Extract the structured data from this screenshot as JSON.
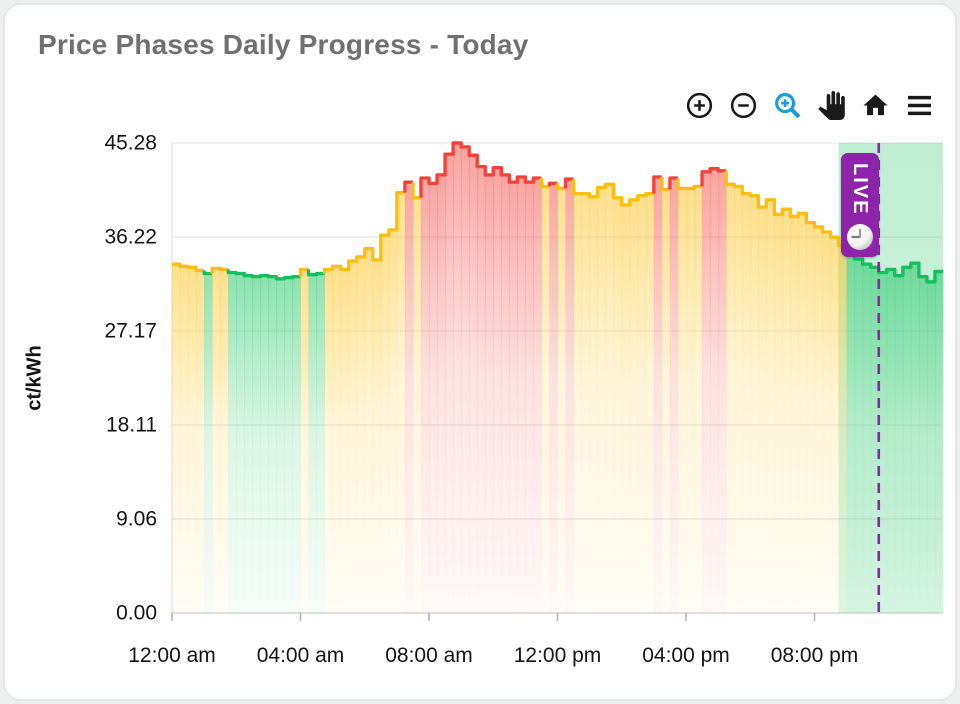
{
  "header": {
    "title": "Price Phases Daily Progress - Today"
  },
  "toolbar": {
    "icon_color": "#1a1a1a",
    "active_color": "#149fda",
    "items": [
      {
        "name": "zoom-in",
        "icon": "circle-plus-icon",
        "active": false
      },
      {
        "name": "zoom-out",
        "icon": "circle-minus-icon",
        "active": false
      },
      {
        "name": "zoom-select",
        "icon": "magnifier-plus-icon",
        "active": true
      },
      {
        "name": "pan",
        "icon": "hand-icon",
        "active": false
      },
      {
        "name": "reset-view",
        "icon": "home-icon",
        "active": false
      },
      {
        "name": "menu",
        "icon": "hamburger-icon",
        "active": false
      }
    ]
  },
  "live_badge": {
    "label": "LIVE",
    "background": "#8e24aa",
    "icon": "clock-icon"
  },
  "chart_data": {
    "type": "area",
    "subtype": "step-phase-area",
    "title": "Price Phases Daily Progress - Today",
    "ylabel": "ct/kWh",
    "xlabel": "",
    "grid": true,
    "legend_position": "none",
    "step_minutes": 15,
    "ylim": [
      0,
      45.28
    ],
    "yticks": [
      {
        "value": 0,
        "label": "0.00"
      },
      {
        "value": 9.06,
        "label": "9.06"
      },
      {
        "value": 18.11,
        "label": "18.11"
      },
      {
        "value": 27.17,
        "label": "27.17"
      },
      {
        "value": 36.22,
        "label": "36.22"
      },
      {
        "value": 45.28,
        "label": "45.28"
      }
    ],
    "xticks": [
      {
        "hour": 0,
        "label": "12:00 am"
      },
      {
        "hour": 4,
        "label": "04:00 am"
      },
      {
        "hour": 8,
        "label": "08:00 am"
      },
      {
        "hour": 12,
        "label": "12:00 pm"
      },
      {
        "hour": 16,
        "label": "04:00 pm"
      },
      {
        "hour": 20,
        "label": "08:00 pm"
      }
    ],
    "phase_colors": {
      "G": "#12c15c",
      "Y": "#fcbe12",
      "R": "#f2433b"
    },
    "live_region": {
      "start_hour": 20.75,
      "end_hour": 24,
      "color": "#12c15c"
    },
    "now_line": {
      "hour": 22,
      "color": "#8e24aa",
      "style": "dashed"
    },
    "points": [
      [
        "00:00",
        33.6,
        "Y"
      ],
      [
        "00:15",
        33.4,
        "Y"
      ],
      [
        "00:30",
        33.3,
        "Y"
      ],
      [
        "00:45",
        33.0,
        "Y"
      ],
      [
        "01:00",
        32.7,
        "G"
      ],
      [
        "01:15",
        33.2,
        "Y"
      ],
      [
        "01:30",
        33.1,
        "Y"
      ],
      [
        "01:45",
        32.8,
        "G"
      ],
      [
        "02:00",
        32.7,
        "G"
      ],
      [
        "02:15",
        32.5,
        "G"
      ],
      [
        "02:30",
        32.4,
        "G"
      ],
      [
        "02:45",
        32.5,
        "G"
      ],
      [
        "03:00",
        32.4,
        "G"
      ],
      [
        "03:15",
        32.2,
        "G"
      ],
      [
        "03:30",
        32.3,
        "G"
      ],
      [
        "03:45",
        32.4,
        "G"
      ],
      [
        "04:00",
        33.1,
        "Y"
      ],
      [
        "04:15",
        32.6,
        "G"
      ],
      [
        "04:30",
        32.7,
        "G"
      ],
      [
        "04:45",
        33.1,
        "Y"
      ],
      [
        "05:00",
        33.4,
        "Y"
      ],
      [
        "05:15",
        33.1,
        "Y"
      ],
      [
        "05:30",
        33.9,
        "Y"
      ],
      [
        "05:45",
        34.3,
        "Y"
      ],
      [
        "06:00",
        35.1,
        "Y"
      ],
      [
        "06:15",
        34.0,
        "Y"
      ],
      [
        "06:30",
        36.4,
        "Y"
      ],
      [
        "06:45",
        36.9,
        "Y"
      ],
      [
        "07:00",
        40.5,
        "Y"
      ],
      [
        "07:15",
        41.5,
        "R"
      ],
      [
        "07:30",
        40.0,
        "Y"
      ],
      [
        "07:45",
        41.9,
        "R"
      ],
      [
        "08:00",
        41.4,
        "R"
      ],
      [
        "08:15",
        42.2,
        "R"
      ],
      [
        "08:30",
        44.2,
        "R"
      ],
      [
        "08:45",
        45.28,
        "R"
      ],
      [
        "09:00",
        44.9,
        "R"
      ],
      [
        "09:15",
        44.1,
        "R"
      ],
      [
        "09:30",
        43.0,
        "R"
      ],
      [
        "09:45",
        42.2,
        "R"
      ],
      [
        "10:00",
        42.9,
        "R"
      ],
      [
        "10:15",
        42.2,
        "R"
      ],
      [
        "10:30",
        41.5,
        "R"
      ],
      [
        "10:45",
        42.0,
        "R"
      ],
      [
        "11:00",
        41.5,
        "R"
      ],
      [
        "11:15",
        41.9,
        "R"
      ],
      [
        "11:30",
        41.1,
        "Y"
      ],
      [
        "11:45",
        41.4,
        "R"
      ],
      [
        "12:00",
        40.9,
        "Y"
      ],
      [
        "12:15",
        41.8,
        "R"
      ],
      [
        "12:30",
        40.4,
        "Y"
      ],
      [
        "12:45",
        40.4,
        "Y"
      ],
      [
        "13:00",
        40.1,
        "Y"
      ],
      [
        "13:15",
        41.0,
        "Y"
      ],
      [
        "13:30",
        41.3,
        "Y"
      ],
      [
        "13:45",
        40.0,
        "Y"
      ],
      [
        "14:00",
        39.3,
        "Y"
      ],
      [
        "14:15",
        39.8,
        "Y"
      ],
      [
        "14:30",
        40.2,
        "Y"
      ],
      [
        "14:45",
        40.4,
        "Y"
      ],
      [
        "15:00",
        42.0,
        "R"
      ],
      [
        "15:15",
        40.8,
        "Y"
      ],
      [
        "15:30",
        41.9,
        "R"
      ],
      [
        "15:45",
        40.9,
        "Y"
      ],
      [
        "16:00",
        40.9,
        "Y"
      ],
      [
        "16:15",
        41.1,
        "Y"
      ],
      [
        "16:30",
        42.5,
        "R"
      ],
      [
        "16:45",
        42.8,
        "R"
      ],
      [
        "17:00",
        42.6,
        "R"
      ],
      [
        "17:15",
        41.3,
        "Y"
      ],
      [
        "17:30",
        41.1,
        "Y"
      ],
      [
        "17:45",
        40.4,
        "Y"
      ],
      [
        "18:00",
        40.2,
        "Y"
      ],
      [
        "18:15",
        39.1,
        "Y"
      ],
      [
        "18:30",
        39.8,
        "Y"
      ],
      [
        "18:45",
        38.4,
        "Y"
      ],
      [
        "19:00",
        38.9,
        "Y"
      ],
      [
        "19:15",
        38.2,
        "Y"
      ],
      [
        "19:30",
        38.5,
        "Y"
      ],
      [
        "19:45",
        37.6,
        "Y"
      ],
      [
        "20:00",
        37.2,
        "Y"
      ],
      [
        "20:15",
        36.7,
        "Y"
      ],
      [
        "20:30",
        36.2,
        "Y"
      ],
      [
        "20:45",
        35.4,
        "Y"
      ],
      [
        "21:00",
        34.8,
        "G"
      ],
      [
        "21:15",
        34.1,
        "G"
      ],
      [
        "21:30",
        33.6,
        "G"
      ],
      [
        "21:45",
        33.3,
        "G"
      ],
      [
        "22:00",
        32.8,
        "G"
      ],
      [
        "22:15",
        33.1,
        "G"
      ],
      [
        "22:30",
        32.5,
        "G"
      ],
      [
        "22:45",
        33.3,
        "G"
      ],
      [
        "23:00",
        33.7,
        "G"
      ],
      [
        "23:15",
        32.4,
        "G"
      ],
      [
        "23:30",
        31.9,
        "G"
      ],
      [
        "23:45",
        32.9,
        "G"
      ]
    ]
  }
}
